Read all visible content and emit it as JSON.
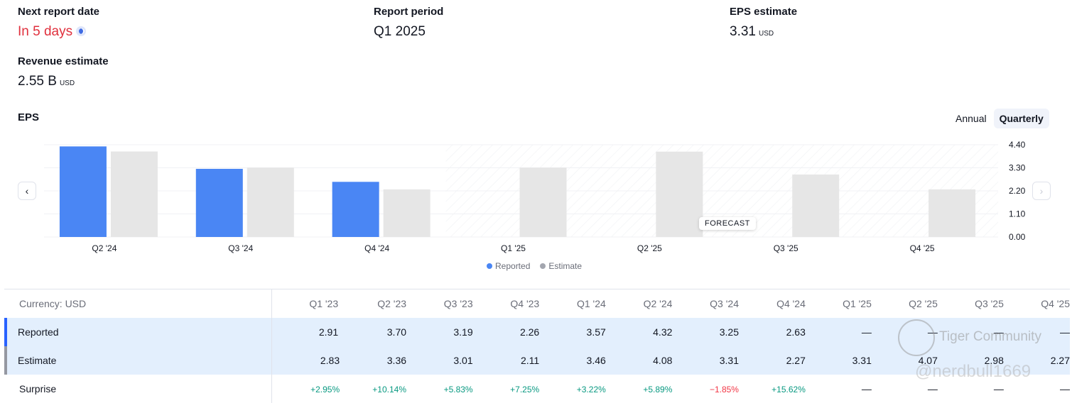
{
  "summary": {
    "next_report": {
      "label": "Next report date",
      "value": "In 5 days"
    },
    "report_period": {
      "label": "Report period",
      "value": "Q1 2025"
    },
    "eps_estimate": {
      "label": "EPS estimate",
      "value": "3.31",
      "unit": "USD"
    },
    "revenue_estimate": {
      "label": "Revenue estimate",
      "value": "2.55 B",
      "unit": "USD"
    }
  },
  "chart_header": {
    "title": "EPS",
    "toggle_annual": "Annual",
    "toggle_quarterly": "Quarterly",
    "active_toggle": "Quarterly",
    "forecast_label": "FORECAST",
    "prev_icon": "‹",
    "next_icon": "›"
  },
  "legend": {
    "reported": "Reported",
    "estimate": "Estimate"
  },
  "colors": {
    "reported": "#4a86f4",
    "estimate": "#e6e6e6",
    "accent_red": "#e0303d",
    "positive": "#089981",
    "negative": "#f23645"
  },
  "chart_data": {
    "type": "bar",
    "title": "EPS",
    "categories": [
      "Q2 '24",
      "Q3 '24",
      "Q4 '24",
      "Q1 '25",
      "Q2 '25",
      "Q3 '25",
      "Q4 '25"
    ],
    "series": [
      {
        "name": "Reported",
        "values": [
          4.32,
          3.25,
          2.63,
          null,
          null,
          null,
          null
        ]
      },
      {
        "name": "Estimate",
        "values": [
          4.08,
          3.31,
          2.27,
          3.31,
          4.07,
          2.98,
          2.27
        ]
      }
    ],
    "yticks": [
      "4.40",
      "3.30",
      "2.20",
      "1.10",
      "0.00"
    ],
    "ylim": [
      0,
      4.4
    ],
    "forecast_from_index": 3,
    "legend_position": "bottom-center",
    "grid": true
  },
  "table": {
    "currency_label": "Currency: USD",
    "columns": [
      "Q1 '23",
      "Q2 '23",
      "Q3 '23",
      "Q4 '23",
      "Q1 '24",
      "Q2 '24",
      "Q3 '24",
      "Q4 '24",
      "Q1 '25",
      "Q2 '25",
      "Q3 '25",
      "Q4 '25"
    ],
    "rows": [
      {
        "name": "Reported",
        "values": [
          "2.91",
          "3.70",
          "3.19",
          "2.26",
          "3.57",
          "4.32",
          "3.25",
          "2.63",
          "—",
          "—",
          "—",
          "—"
        ]
      },
      {
        "name": "Estimate",
        "values": [
          "2.83",
          "3.36",
          "3.01",
          "2.11",
          "3.46",
          "4.08",
          "3.31",
          "2.27",
          "3.31",
          "4.07",
          "2.98",
          "2.27"
        ]
      },
      {
        "name": "Surprise",
        "values": [
          "+2.95%",
          "+10.14%",
          "+5.83%",
          "+7.25%",
          "+3.22%",
          "+5.89%",
          "−1.85%",
          "+15.62%",
          "—",
          "—",
          "—",
          "—"
        ]
      }
    ]
  },
  "watermark": {
    "line1": "Tiger Community",
    "line2": "@nerdbull1669"
  }
}
